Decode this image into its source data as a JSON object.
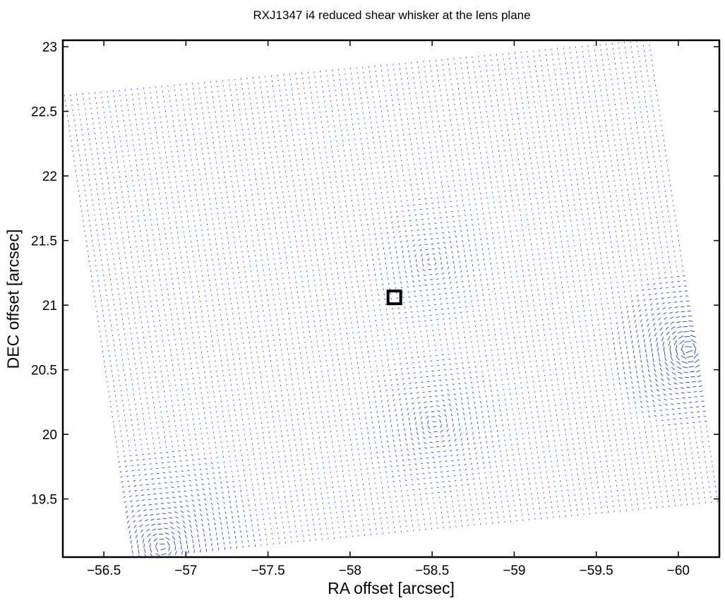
{
  "chart_data": {
    "type": "scatter",
    "title": "RXJ1347 i4 reduced shear whisker at the lens plane",
    "xlabel": "RA offset [arcsec]",
    "ylabel": "DEC offset [arcsec]",
    "xlim": [
      -56.25,
      -60.25
    ],
    "ylim": [
      19.05,
      23.05
    ],
    "x_reversed": true,
    "xticks": [
      -56.5,
      -57,
      -57.5,
      -58,
      -58.5,
      -59,
      -59.5,
      -60
    ],
    "xtick_labels": [
      "−56.5",
      "−57",
      "−57.5",
      "−58",
      "−58.5",
      "−59",
      "−59.5",
      "−60"
    ],
    "yticks": [
      19.5,
      20,
      20.5,
      21,
      21.5,
      22,
      22.5,
      23
    ],
    "ytick_labels": [
      "19.5",
      "20",
      "20.5",
      "21",
      "21.5",
      "22",
      "22.5",
      "23"
    ],
    "grid": false,
    "whisker_color": "#1f3fd8",
    "field_corners": [
      [
        -56.26,
        22.62
      ],
      [
        -59.82,
        23.05
      ],
      [
        -60.25,
        19.47
      ],
      [
        -56.68,
        19.05
      ]
    ],
    "markers": [
      {
        "shape": "square",
        "x": -58.27,
        "y": 21.06,
        "color": "#000000"
      }
    ]
  }
}
